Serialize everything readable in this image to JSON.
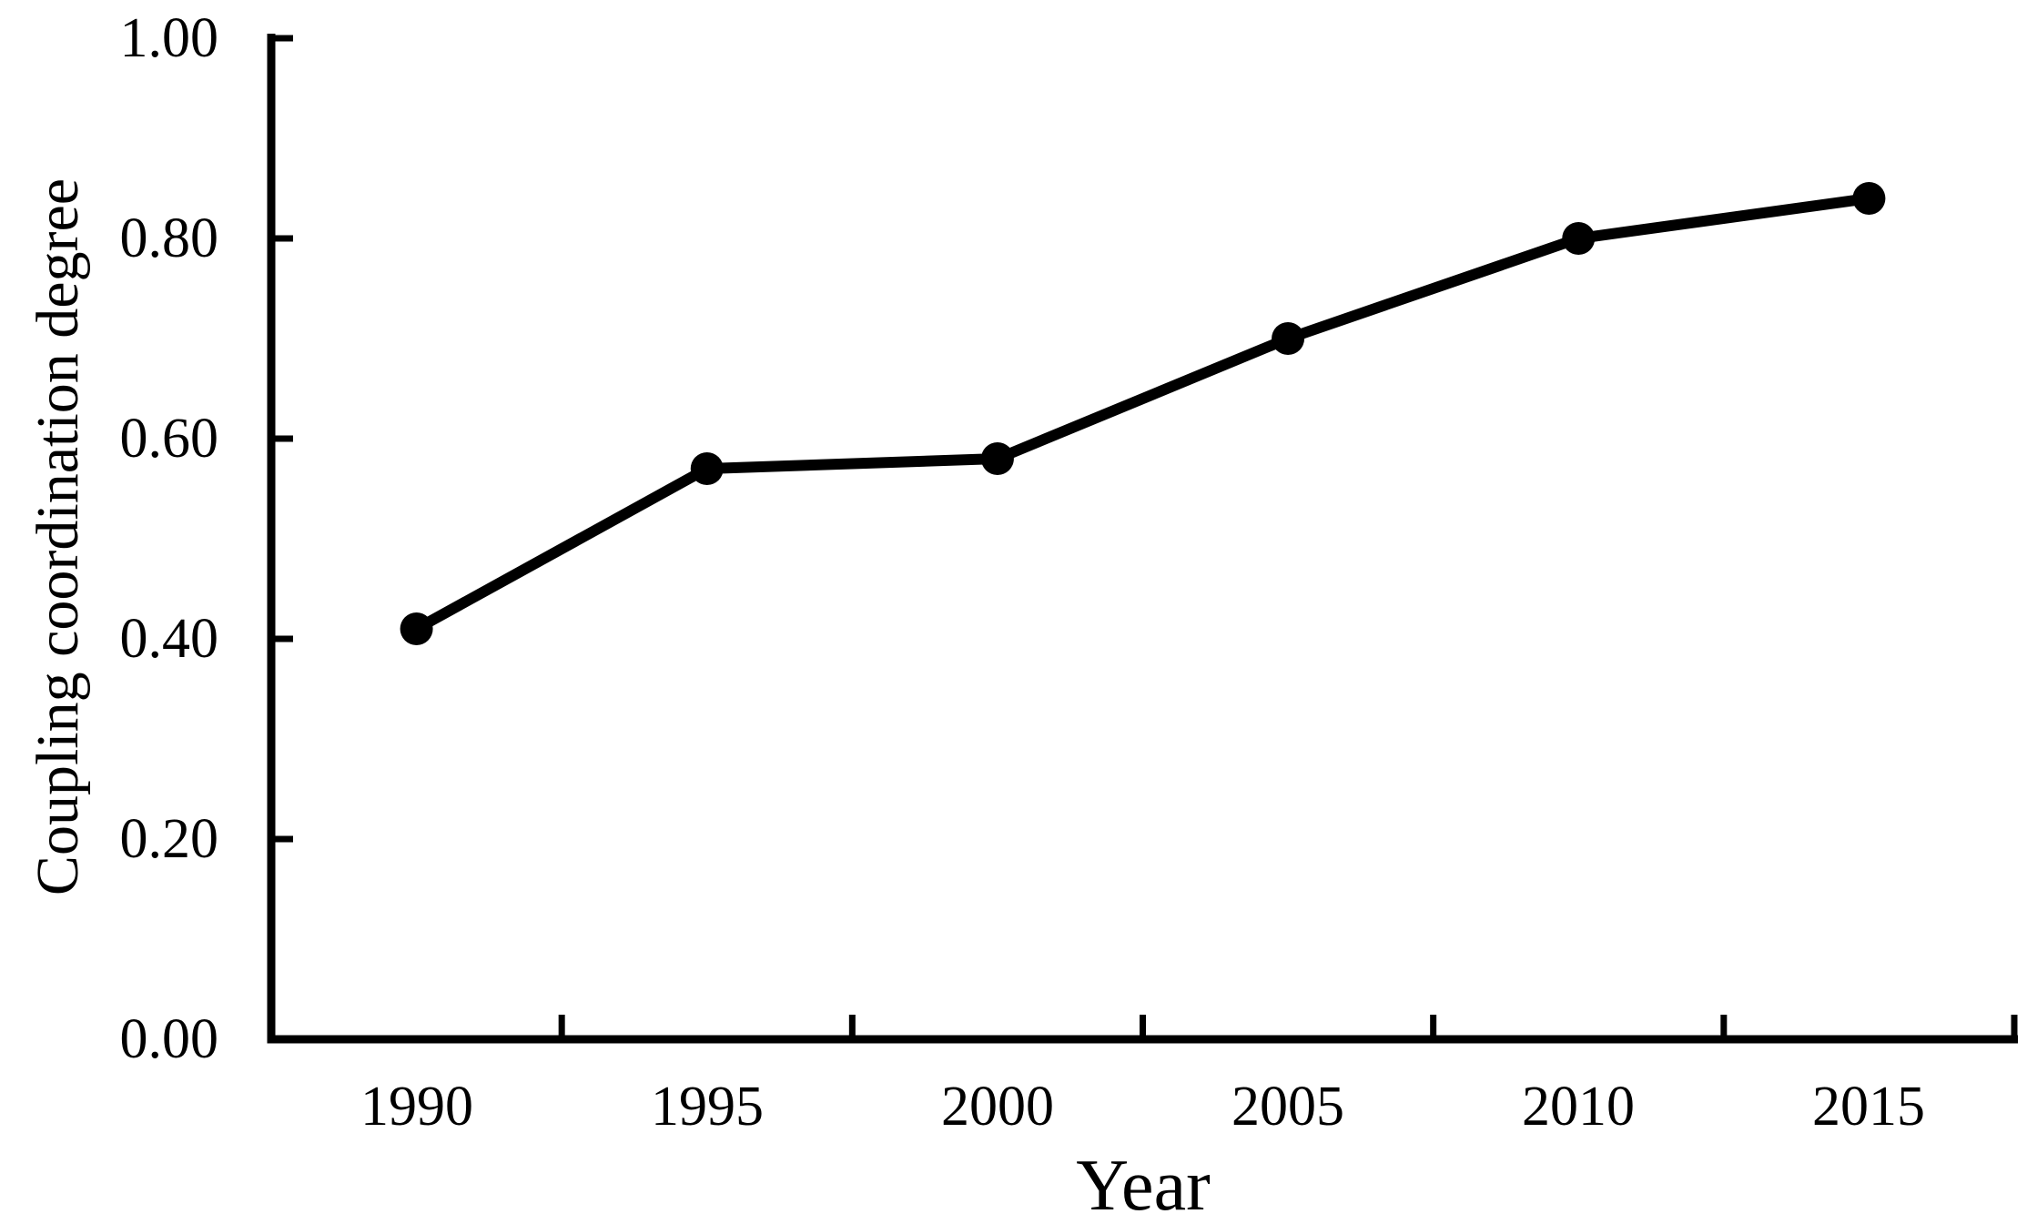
{
  "figure": {
    "background_color": "#ffffff",
    "axis_color": "#000000"
  },
  "chart_data": {
    "type": "line",
    "title": "",
    "xlabel": "Year",
    "ylabel": "Coupling coordination degree",
    "categories": [
      "1990",
      "1995",
      "2000",
      "2005",
      "2010",
      "2015"
    ],
    "values": [
      0.41,
      0.57,
      0.58,
      0.7,
      0.8,
      0.84
    ],
    "ylim": [
      0.0,
      1.0
    ],
    "ytick_values": [
      0.0,
      0.2,
      0.4,
      0.6,
      0.8,
      1.0
    ],
    "ytick_labels": [
      "0.00",
      "0.20",
      "0.40",
      "0.60",
      "0.80",
      "1.00"
    ],
    "grid": false,
    "legend": "none",
    "line_color": "#000000",
    "marker": "filled-circle",
    "marker_color": "#000000"
  }
}
